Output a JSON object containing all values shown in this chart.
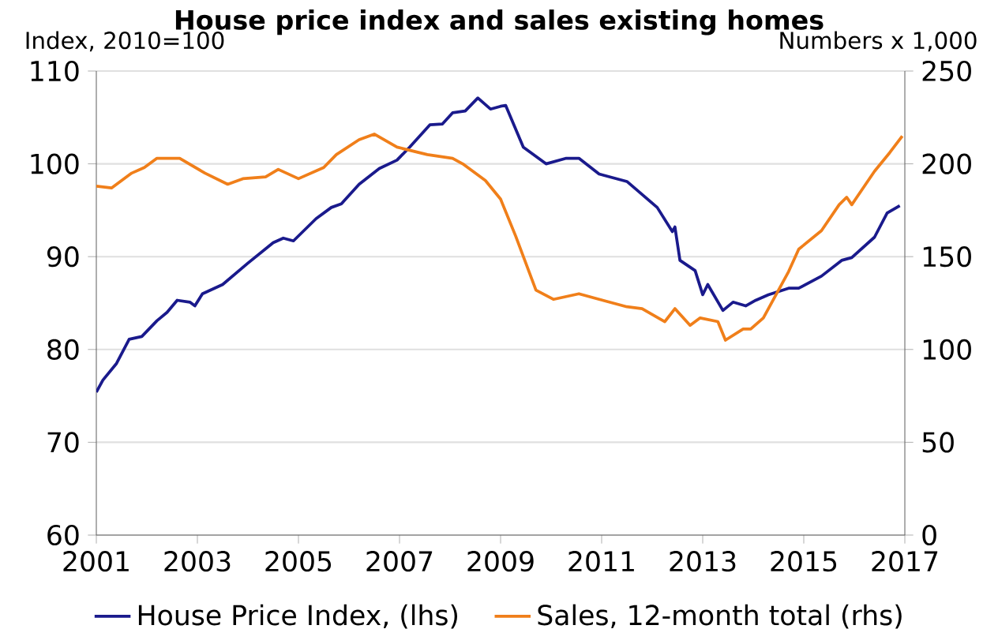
{
  "chart_data": {
    "type": "line",
    "title": "House price index and sales existing homes",
    "ylabel": "Index, 2010=100",
    "y2label": "Numbers x 1,000",
    "xlim": [
      2001,
      2017
    ],
    "xticks": [
      2001,
      2003,
      2005,
      2007,
      2009,
      2011,
      2013,
      2015,
      2017
    ],
    "ylim": [
      60,
      110
    ],
    "yticks": [
      60,
      70,
      80,
      90,
      100,
      110
    ],
    "y2lim": [
      0,
      250
    ],
    "y2ticks": [
      0,
      50,
      100,
      150,
      200,
      250
    ],
    "grid": "y",
    "legend": "bottom",
    "marker": "none",
    "line_style": "solid",
    "series": [
      {
        "name": "House Price Index,  (lhs)",
        "color": "#1a1a8c",
        "x": [
          2001.0,
          2001.13,
          2001.4,
          2001.65,
          2001.9,
          2002.2,
          2002.4,
          2002.6,
          2002.85,
          2002.95,
          2003.1,
          2003.5,
          2004.0,
          2004.5,
          2004.7,
          2004.9,
          2005.35,
          2005.65,
          2005.85,
          2006.2,
          2006.6,
          2006.95,
          2007.2,
          2007.6,
          2007.85,
          2008.05,
          2008.3,
          2008.55,
          2008.8,
          2009.0,
          2009.1,
          2009.45,
          2009.9,
          2010.3,
          2010.55,
          2010.95,
          2011.5,
          2011.8,
          2012.1,
          2012.4,
          2012.45,
          2012.55,
          2012.85,
          2013.0,
          2013.1,
          2013.4,
          2013.6,
          2013.85,
          2014.05,
          2014.3,
          2014.7,
          2014.9,
          2015.35,
          2015.75,
          2015.95,
          2016.4,
          2016.65,
          2016.9
        ],
        "values": [
          75.4,
          76.7,
          78.5,
          81.1,
          81.4,
          83.1,
          84.0,
          85.3,
          85.1,
          84.7,
          86.0,
          87.0,
          89.3,
          91.5,
          92.0,
          91.7,
          94.1,
          95.3,
          95.7,
          97.8,
          99.5,
          100.4,
          101.8,
          104.2,
          104.3,
          105.5,
          105.7,
          107.1,
          105.9,
          106.2,
          106.3,
          101.8,
          100.0,
          100.6,
          100.6,
          98.9,
          98.1,
          96.7,
          95.3,
          92.7,
          93.2,
          89.6,
          88.5,
          85.9,
          87.0,
          84.2,
          85.1,
          84.7,
          85.3,
          85.9,
          86.6,
          86.6,
          87.9,
          89.6,
          89.9,
          92.1,
          94.7,
          95.5
        ]
      },
      {
        "name": "Sales, 12-month total (rhs)",
        "color": "#f07f1a",
        "axis": "y2",
        "x": [
          2001.0,
          2001.3,
          2001.7,
          2001.95,
          2002.2,
          2002.65,
          2003.15,
          2003.6,
          2003.9,
          2004.35,
          2004.6,
          2005.0,
          2005.5,
          2005.75,
          2006.2,
          2006.5,
          2006.95,
          2007.55,
          2008.05,
          2008.25,
          2008.7,
          2009.0,
          2009.3,
          2009.7,
          2010.05,
          2010.55,
          2010.95,
          2011.5,
          2011.8,
          2012.25,
          2012.45,
          2012.75,
          2012.95,
          2013.3,
          2013.45,
          2013.8,
          2013.95,
          2014.2,
          2014.5,
          2014.7,
          2014.9,
          2015.35,
          2015.7,
          2015.85,
          2015.95,
          2016.4,
          2016.7,
          2016.95
        ],
        "values": [
          188,
          187,
          195,
          198,
          203,
          203,
          195,
          189,
          192,
          193,
          197,
          192,
          198,
          205,
          213,
          216,
          209,
          205,
          203,
          200,
          191,
          181,
          161,
          132,
          127,
          130,
          127,
          123,
          122,
          115,
          122,
          113,
          117,
          115,
          105,
          111,
          111,
          117,
          132,
          142,
          154,
          164,
          178,
          182,
          178,
          196,
          206,
          215
        ]
      }
    ]
  }
}
